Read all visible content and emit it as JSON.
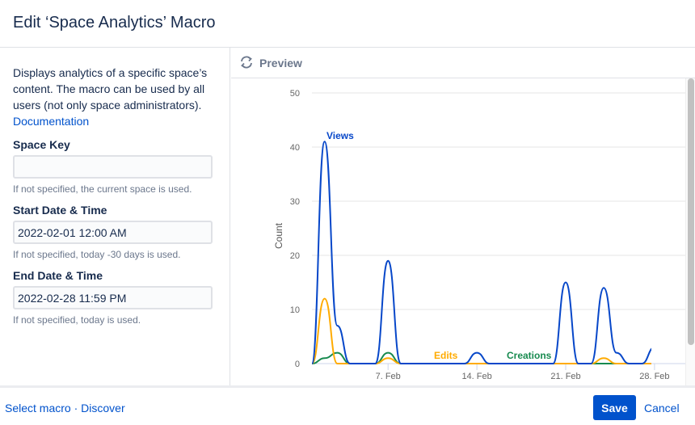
{
  "dialog": {
    "title": "Edit ‘Space Analytics’ Macro"
  },
  "form": {
    "description": "Displays analytics of a specific space’s content. The macro can be used by all users (not only space administrators).",
    "documentation_link": "Documentation",
    "space_key": {
      "label": "Space Key",
      "value": "",
      "hint": "If not specified, the current space is used."
    },
    "start": {
      "label": "Start Date & Time",
      "value": "2022-02-01 12:00 AM",
      "hint": "If not specified, today -30 days is used."
    },
    "end": {
      "label": "End Date & Time",
      "value": "2022-02-28 11:59 PM",
      "hint": "If not specified, today is used."
    }
  },
  "preview": {
    "title": "Preview",
    "icon": "refresh-icon"
  },
  "footer": {
    "select_macro": "Select macro",
    "separator": "·",
    "discover": "Discover",
    "save": "Save",
    "cancel": "Cancel"
  },
  "colors": {
    "accent": "#0052cc",
    "views": "#0747c9",
    "edits": "#ffab00",
    "creations": "#178a4f"
  },
  "chart_data": {
    "type": "line",
    "ylabel": "Count",
    "ylim": [
      0,
      50
    ],
    "yticks": [
      "0",
      "10",
      "20",
      "30",
      "40",
      "50"
    ],
    "xticks": [
      "7. Feb",
      "14. Feb",
      "21. Feb",
      "28. Feb"
    ],
    "x": [
      "2022-02-01",
      "2022-02-02",
      "2022-02-03",
      "2022-02-04",
      "2022-02-05",
      "2022-02-06",
      "2022-02-07",
      "2022-02-08",
      "2022-02-09",
      "2022-02-10",
      "2022-02-11",
      "2022-02-12",
      "2022-02-13",
      "2022-02-14",
      "2022-02-15",
      "2022-02-16",
      "2022-02-17",
      "2022-02-18",
      "2022-02-19",
      "2022-02-20",
      "2022-02-21",
      "2022-02-22",
      "2022-02-23",
      "2022-02-24",
      "2022-02-25",
      "2022-02-26",
      "2022-02-27",
      "2022-02-28"
    ],
    "grid": true,
    "series": [
      {
        "name": "Views",
        "color": "#0747c9",
        "values": [
          0,
          41,
          7,
          0,
          0,
          0,
          19,
          0,
          0,
          0,
          0,
          0,
          0,
          2,
          0,
          0,
          0,
          0,
          0,
          0,
          15,
          0,
          0,
          14,
          2,
          0,
          0,
          3
        ]
      },
      {
        "name": "Edits",
        "color": "#ffab00",
        "values": [
          0,
          12,
          0,
          0,
          0,
          0,
          1,
          0,
          0,
          0,
          0,
          0,
          0,
          0,
          0,
          0,
          0,
          0,
          0,
          0,
          0,
          0,
          0,
          1,
          0,
          0,
          0,
          0
        ]
      },
      {
        "name": "Creations",
        "color": "#178a4f",
        "values": [
          0,
          1,
          2,
          0,
          0,
          0,
          2,
          0,
          0,
          0,
          0,
          0,
          0,
          0,
          0,
          0,
          0,
          0,
          0,
          0,
          0,
          0,
          0,
          0,
          0,
          0,
          0,
          0
        ]
      }
    ]
  }
}
